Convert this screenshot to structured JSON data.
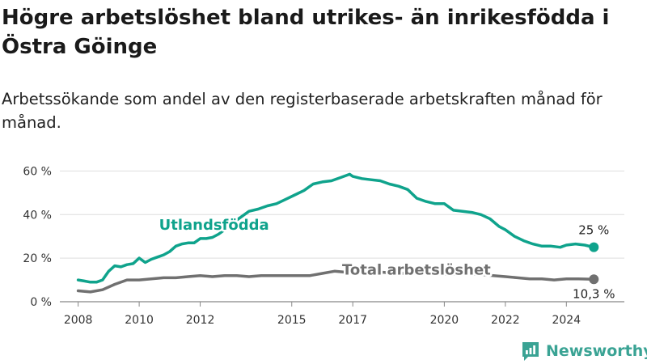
{
  "title": "Högre arbetslöshet bland utrikes- än inrikesfödda i Östra Göinge",
  "subtitle": "Arbetssökande som andel av den registerbaserade arbetskraften månad för månad.",
  "brand": {
    "name": "Newsworthy",
    "color": "#3aa394"
  },
  "chart_data": {
    "type": "line",
    "title": "Högre arbetslöshet bland utrikes- än inrikesfödda i Östra Göinge",
    "subtitle": "Arbetssökande som andel av den registerbaserade arbetskraften månad för månad.",
    "xlabel": "",
    "ylabel": "",
    "xlim": [
      2007.4,
      2025.9
    ],
    "ylim": [
      0,
      62
    ],
    "x_ticks": [
      2008,
      2010,
      2012,
      2015,
      2017,
      2020,
      2022,
      2024
    ],
    "y_ticks": [
      0,
      20,
      40,
      60
    ],
    "y_tick_labels": [
      "0 %",
      "20 %",
      "40 %",
      "60 %"
    ],
    "grid": true,
    "legend": "inline labels",
    "series": [
      {
        "name": "Utlandsfödda",
        "color": "#0fa38c",
        "end_label": "25 %",
        "x": [
          2008.0,
          2008.2,
          2008.4,
          2008.6,
          2008.8,
          2009.0,
          2009.2,
          2009.4,
          2009.6,
          2009.8,
          2010.0,
          2010.2,
          2010.4,
          2010.6,
          2010.8,
          2011.0,
          2011.2,
          2011.4,
          2011.6,
          2011.8,
          2012.0,
          2012.2,
          2012.4,
          2012.6,
          2012.8,
          2013.0,
          2013.3,
          2013.6,
          2013.9,
          2014.2,
          2014.5,
          2014.8,
          2015.1,
          2015.4,
          2015.7,
          2016.0,
          2016.3,
          2016.6,
          2016.9,
          2017.0,
          2017.3,
          2017.6,
          2017.9,
          2018.2,
          2018.5,
          2018.8,
          2019.1,
          2019.4,
          2019.7,
          2020.0,
          2020.3,
          2020.6,
          2020.9,
          2021.2,
          2021.5,
          2021.8,
          2022.0,
          2022.3,
          2022.6,
          2022.9,
          2023.2,
          2023.5,
          2023.8,
          2024.0,
          2024.3,
          2024.6,
          2024.9
        ],
        "values": [
          10,
          9.5,
          9,
          9,
          10,
          14,
          16.5,
          16,
          17,
          17.5,
          20,
          18,
          19.5,
          20.5,
          21.5,
          23,
          25.5,
          26.5,
          27,
          27,
          29,
          29,
          29.5,
          31,
          33,
          35.5,
          38.5,
          41.5,
          42.5,
          44,
          45,
          47,
          49,
          51,
          54,
          55,
          55.5,
          57,
          58.5,
          57.5,
          56.5,
          56,
          55.5,
          54,
          53,
          51.5,
          47.5,
          46,
          45,
          45,
          42,
          41.5,
          41,
          40,
          38,
          34.5,
          33,
          30,
          28,
          26.5,
          25.5,
          25.5,
          25,
          26,
          26.5,
          26,
          25
        ]
      },
      {
        "name": "Total arbetslöshet",
        "color": "#707070",
        "end_label": "10,3 %",
        "x": [
          2008.0,
          2008.4,
          2008.8,
          2009.2,
          2009.6,
          2010.0,
          2010.4,
          2010.8,
          2011.2,
          2011.6,
          2012.0,
          2012.4,
          2012.8,
          2013.2,
          2013.6,
          2014.0,
          2014.4,
          2014.8,
          2015.2,
          2015.6,
          2016.0,
          2016.4,
          2016.8,
          2017.2,
          2017.6,
          2018.0,
          2018.4,
          2018.8,
          2019.2,
          2019.6,
          2020.0,
          2020.4,
          2020.8,
          2021.2,
          2021.6,
          2022.0,
          2022.4,
          2022.8,
          2023.2,
          2023.6,
          2024.0,
          2024.4,
          2024.9
        ],
        "values": [
          5,
          4.5,
          5.5,
          8,
          10,
          10,
          10.5,
          11,
          11,
          11.5,
          12,
          11.5,
          12,
          12,
          11.5,
          12,
          12,
          12,
          12,
          12,
          13,
          14,
          13.5,
          13.5,
          13.5,
          13.5,
          13,
          13,
          13,
          12.5,
          12.5,
          12.5,
          12.5,
          12.5,
          12,
          11.5,
          11,
          10.5,
          10.5,
          10,
          10.5,
          10.5,
          10.3
        ]
      }
    ]
  }
}
